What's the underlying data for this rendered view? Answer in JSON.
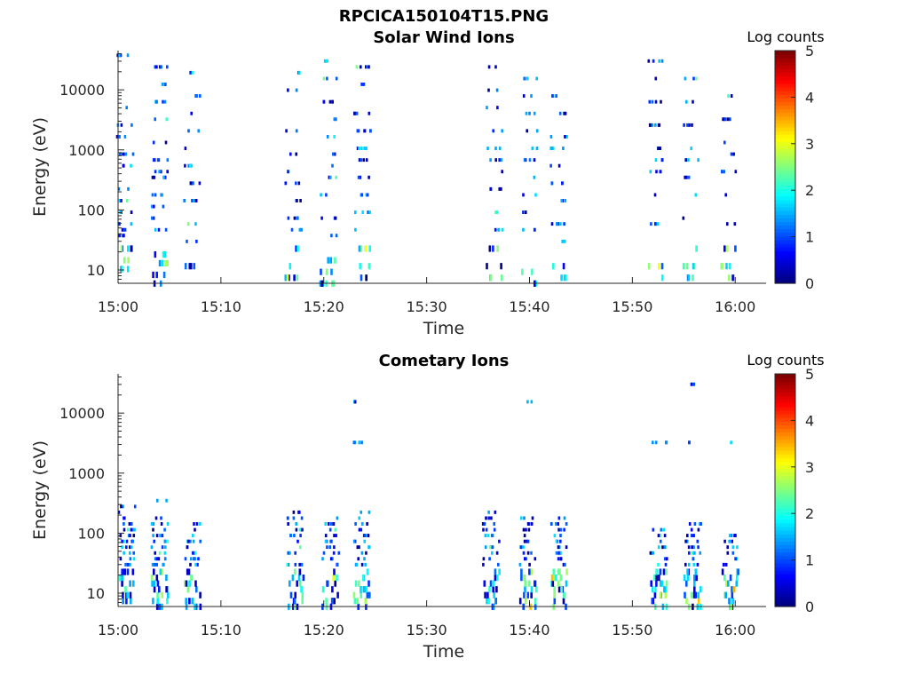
{
  "figure": {
    "title": "RPCICA150104T15.PNG"
  },
  "chart_data": [
    {
      "type": "heatmap",
      "title": "Solar Wind Ions",
      "xlabel": "Time",
      "ylabel": "Energy (eV)",
      "x_ticks": [
        "15:00",
        "15:10",
        "15:20",
        "15:30",
        "15:40",
        "15:50",
        "16:00"
      ],
      "x_tick_minutes": [
        0,
        10,
        20,
        30,
        40,
        50,
        60
      ],
      "x_range_minutes": [
        0,
        63
      ],
      "y_scale": "log",
      "y_ticks": [
        "10",
        "100",
        "1000",
        "10000"
      ],
      "y_tick_values": [
        10,
        100,
        1000,
        10000
      ],
      "y_range": [
        6,
        45000
      ],
      "colorbar": {
        "label": "Log counts",
        "range": [
          0,
          5
        ],
        "ticks": [
          "0",
          "1",
          "2",
          "3",
          "4",
          "5"
        ]
      },
      "bursts": [
        {
          "t": 0.4,
          "e": [
            5,
            8,
            12,
            16,
            18,
            20,
            24,
            28,
            32,
            40,
            44,
            50,
            54,
            60,
            70,
            78
          ]
        },
        {
          "t": 3.8,
          "e": [
            0,
            3,
            7,
            10,
            18,
            22,
            26,
            30,
            36,
            38,
            42,
            48,
            56,
            62,
            68,
            74
          ]
        },
        {
          "t": 6.9,
          "e": [
            2,
            6,
            14,
            20,
            28,
            34,
            40,
            46,
            52,
            58,
            64,
            72
          ]
        },
        {
          "t": 16.8,
          "e": [
            2,
            6,
            12,
            18,
            22,
            28,
            34,
            38,
            44,
            52,
            58,
            66,
            72
          ]
        },
        {
          "t": 20.2,
          "e": [
            0,
            4,
            8,
            16,
            22,
            30,
            36,
            40,
            44,
            50,
            56,
            62,
            70,
            76
          ]
        },
        {
          "t": 23.5,
          "e": [
            2,
            6,
            12,
            18,
            24,
            30,
            36,
            42,
            46,
            52,
            58,
            68,
            74
          ]
        },
        {
          "t": 36.3,
          "e": [
            2,
            6,
            12,
            18,
            24,
            32,
            38,
            42,
            46,
            52,
            60,
            66,
            74
          ]
        },
        {
          "t": 39.7,
          "e": [
            0,
            4,
            10,
            18,
            24,
            30,
            36,
            42,
            46,
            52,
            58,
            64,
            70
          ]
        },
        {
          "t": 42.6,
          "e": [
            2,
            6,
            14,
            20,
            28,
            34,
            40,
            46,
            50,
            58,
            64
          ]
        },
        {
          "t": 52.0,
          "e": [
            2,
            6,
            12,
            20,
            30,
            38,
            42,
            46,
            54,
            62,
            70,
            76
          ]
        },
        {
          "t": 55.4,
          "e": [
            2,
            6,
            12,
            22,
            30,
            36,
            42,
            46,
            54,
            62,
            70
          ]
        },
        {
          "t": 59.0,
          "e": [
            2,
            6,
            12,
            20,
            30,
            38,
            44,
            48,
            56,
            64
          ]
        }
      ]
    },
    {
      "type": "heatmap",
      "title": "Cometary Ions",
      "xlabel": "Time",
      "ylabel": "Energy (eV)",
      "x_ticks": [
        "15:00",
        "15:10",
        "15:20",
        "15:30",
        "15:40",
        "15:50",
        "16:00"
      ],
      "x_tick_minutes": [
        0,
        10,
        20,
        30,
        40,
        50,
        60
      ],
      "x_range_minutes": [
        0,
        63
      ],
      "y_scale": "log",
      "y_ticks": [
        "10",
        "100",
        "1000",
        "10000"
      ],
      "y_tick_values": [
        10,
        100,
        1000,
        10000
      ],
      "y_range": [
        6,
        45000
      ],
      "colorbar": {
        "label": "Log counts",
        "range": [
          0,
          5
        ],
        "ticks": [
          "0",
          "1",
          "2",
          "3",
          "4",
          "5"
        ]
      },
      "bursts": [
        {
          "t": 0.6,
          "e": [
            0,
            2,
            4,
            6,
            8,
            10,
            12,
            14,
            16,
            18,
            20,
            22,
            24,
            26,
            28,
            30,
            32,
            34
          ]
        },
        {
          "t": 3.8,
          "e": [
            0,
            2,
            4,
            6,
            8,
            10,
            12,
            14,
            16,
            18,
            20,
            22,
            24,
            26,
            28,
            30,
            32,
            36
          ]
        },
        {
          "t": 7.0,
          "e": [
            0,
            2,
            4,
            6,
            8,
            10,
            12,
            14,
            16,
            18,
            20,
            22,
            24,
            26,
            28,
            30
          ]
        },
        {
          "t": 17.0,
          "e": [
            0,
            2,
            4,
            6,
            8,
            10,
            12,
            14,
            16,
            18,
            20,
            22,
            24,
            26,
            28,
            30,
            32
          ]
        },
        {
          "t": 20.4,
          "e": [
            0,
            2,
            4,
            6,
            8,
            10,
            12,
            14,
            16,
            18,
            20,
            22,
            24,
            26,
            28,
            30
          ]
        },
        {
          "t": 23.4,
          "e": [
            0,
            2,
            4,
            6,
            8,
            10,
            12,
            14,
            16,
            18,
            20,
            22,
            24,
            26,
            28,
            30,
            32,
            56,
            70
          ]
        },
        {
          "t": 36.0,
          "e": [
            0,
            2,
            4,
            6,
            8,
            10,
            12,
            14,
            16,
            18,
            20,
            22,
            24,
            26,
            28,
            30,
            32
          ]
        },
        {
          "t": 39.6,
          "e": [
            0,
            2,
            4,
            6,
            8,
            10,
            12,
            14,
            16,
            18,
            20,
            22,
            24,
            26,
            28,
            30,
            70
          ]
        },
        {
          "t": 42.6,
          "e": [
            0,
            2,
            4,
            6,
            8,
            10,
            12,
            14,
            16,
            18,
            20,
            22,
            24,
            26,
            28,
            30
          ]
        },
        {
          "t": 52.3,
          "e": [
            0,
            2,
            4,
            6,
            8,
            10,
            12,
            14,
            16,
            18,
            20,
            22,
            24,
            26,
            56
          ]
        },
        {
          "t": 55.6,
          "e": [
            0,
            2,
            4,
            6,
            8,
            10,
            12,
            14,
            16,
            18,
            20,
            22,
            24,
            26,
            28,
            56,
            76
          ]
        },
        {
          "t": 59.3,
          "e": [
            0,
            2,
            4,
            6,
            8,
            10,
            12,
            14,
            16,
            18,
            20,
            22,
            24,
            56
          ]
        }
      ]
    }
  ]
}
